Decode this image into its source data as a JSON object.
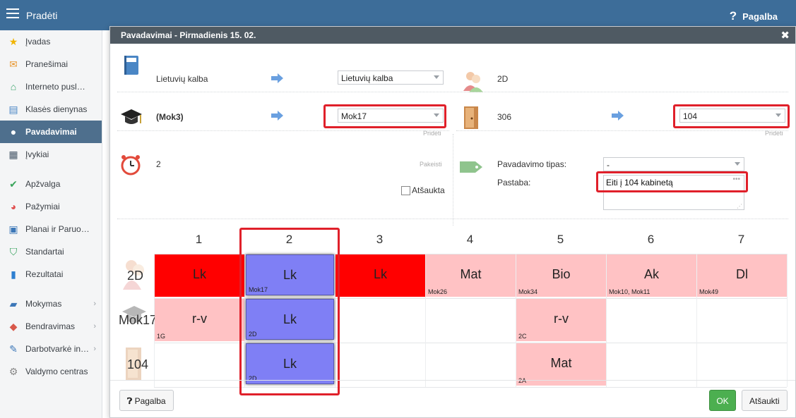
{
  "topbar": {
    "menu_label": "Pradėti",
    "help_label": "Pagalba",
    "help_icon": "question-icon"
  },
  "sidebar": {
    "items": [
      {
        "label": "Įvadas",
        "icon": "star-icon"
      },
      {
        "label": "Pranešimai",
        "icon": "envelope-icon"
      },
      {
        "label": "Interneto pusl…",
        "icon": "house-icon"
      },
      {
        "label": "Klasės dienynas",
        "icon": "book-icon"
      },
      {
        "label": "Pavadavimai",
        "icon": "user-icon",
        "active": true
      },
      {
        "label": "Įvykiai",
        "icon": "calendar-icon"
      },
      {
        "label": "Apžvalga",
        "icon": "check-circle-icon"
      },
      {
        "label": "Pažymiai",
        "icon": "chart-circle-icon"
      },
      {
        "label": "Planai ir Paruo…",
        "icon": "briefcase-icon"
      },
      {
        "label": "Standartai",
        "icon": "shield-check-icon"
      },
      {
        "label": "Rezultatai",
        "icon": "bar-chart-icon"
      },
      {
        "label": "Mokymas",
        "icon": "open-book-icon"
      },
      {
        "label": "Bendravimas",
        "icon": "chat-icon"
      },
      {
        "label": "Darbotvarkė in…",
        "icon": "pen-icon"
      },
      {
        "label": "Valdymo centras",
        "icon": "gear-icon"
      }
    ]
  },
  "modal": {
    "title": "Pavadavimai - Pirmadienis 15. 02.",
    "subject": {
      "label": "Lietuvių kalba",
      "select_value": "Lietuvių kalba"
    },
    "teacher": {
      "label": "(Mok3)",
      "select_value": "Mok17",
      "add_link": "Pridėti"
    },
    "class": {
      "label": "2D"
    },
    "room": {
      "label": "306",
      "select_value": "104",
      "add_link": "Pridėti"
    },
    "period": {
      "label": "2",
      "change_link": "Pakeisti",
      "cancelled_label": "Atšaukta"
    },
    "sub_type": {
      "label": "Pavadavimo tipas:",
      "value": "-"
    },
    "note": {
      "label": "Pastaba:",
      "value": "Eiti į 104 kabinetą"
    },
    "grid": {
      "periods": [
        "1",
        "2",
        "3",
        "4",
        "5",
        "6",
        "7"
      ],
      "rows": [
        {
          "label": "2D",
          "icon": "class-people-icon"
        },
        {
          "label": "Mok17",
          "icon": "graduation-cap-icon"
        },
        {
          "label": "104",
          "icon": "door-icon"
        }
      ],
      "cells": [
        [
          {
            "main": "Lk",
            "sub": "",
            "color": "red"
          },
          {
            "main": "Lk",
            "sub": "Mok17",
            "color": "blue"
          },
          {
            "main": "Lk",
            "sub": "",
            "color": "red"
          },
          {
            "main": "Mat",
            "sub": "Mok26",
            "color": "pink"
          },
          {
            "main": "Bio",
            "sub": "Mok34",
            "color": "pink"
          },
          {
            "main": "Ak",
            "sub": "Mok10, Mok11",
            "color": "pink"
          },
          {
            "main": "Dl",
            "sub": "Mok49",
            "color": "pink"
          }
        ],
        [
          {
            "main": "r-v",
            "sub": "1G",
            "color": "pink"
          },
          {
            "main": "Lk",
            "sub": "2D",
            "color": "blue"
          },
          null,
          null,
          {
            "main": "r-v",
            "sub": "2C",
            "color": "pink"
          },
          null,
          null
        ],
        [
          null,
          {
            "main": "Lk",
            "sub": "2D",
            "color": "blue"
          },
          null,
          null,
          {
            "main": "Mat",
            "sub": "2A",
            "color": "pink"
          },
          null,
          null
        ]
      ]
    },
    "footer": {
      "help_label": "Pagalba",
      "ok_label": "OK",
      "cancel_label": "Atšaukti"
    }
  },
  "colors": {
    "red": "#ff0000",
    "pink": "#ffc2c4",
    "blue": "#7f7ff5",
    "highlight": "#e0202a",
    "ok": "#4caf50"
  }
}
